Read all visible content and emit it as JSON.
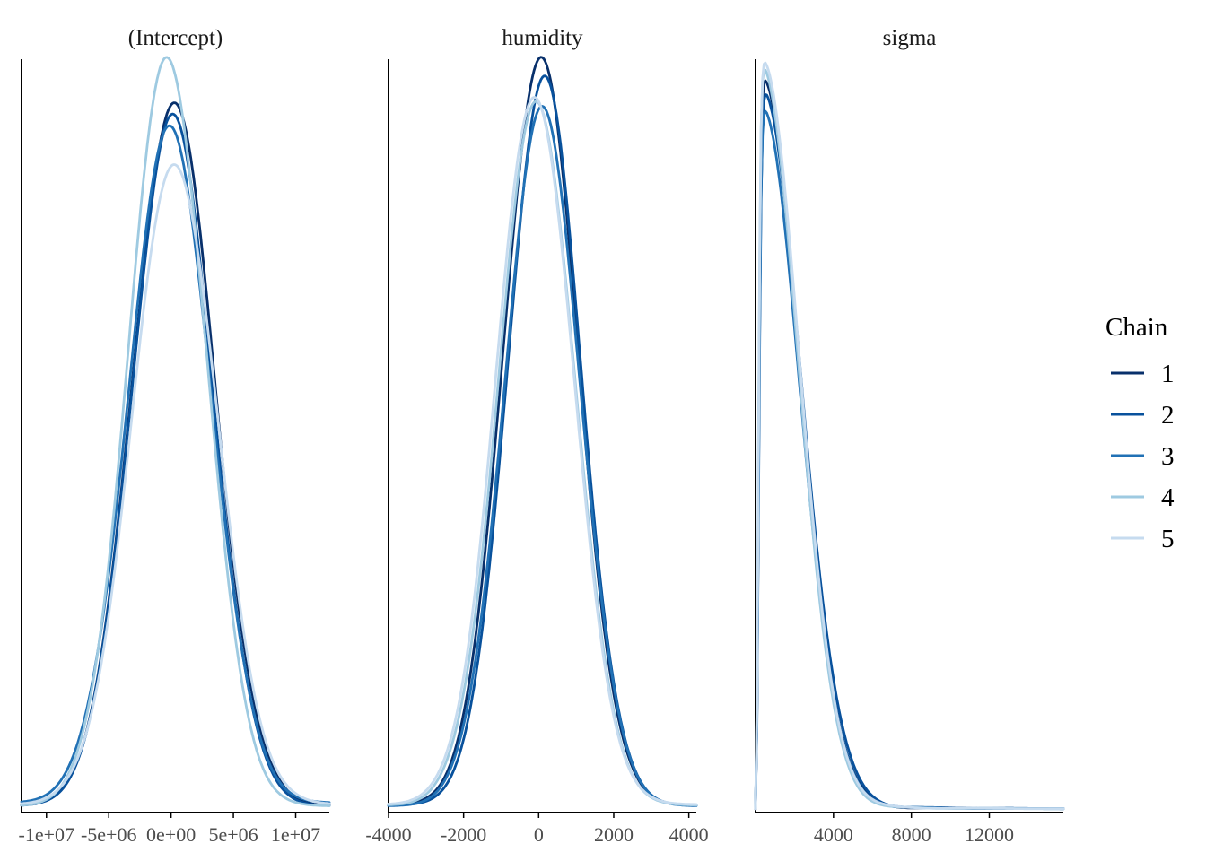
{
  "chart_data": {
    "type": "line",
    "kind": "density",
    "panels": [
      {
        "title": "(Intercept)",
        "xlim": [
          -12000000,
          12700000
        ],
        "ticks": [
          {
            "value": -10000000,
            "label": "-1e+07"
          },
          {
            "value": -5000000,
            "label": "-5e+06"
          },
          {
            "value": 0,
            "label": "0e+00"
          },
          {
            "value": 5000000,
            "label": "5e+06"
          },
          {
            "value": 10000000,
            "label": "1e+07"
          }
        ],
        "shape": {
          "kind": "normal",
          "mean": 0,
          "sd": 3300000,
          "peak": 0.95
        },
        "chains": [
          {
            "mean": 200000,
            "sd": 3300000,
            "peak": 0.94,
            "tail": 0.004
          },
          {
            "mean": 100000,
            "sd": 3250000,
            "peak": 0.92,
            "tail": 0.004
          },
          {
            "mean": -100000,
            "sd": 3350000,
            "peak": 0.9,
            "tail": 0.008
          },
          {
            "mean": -300000,
            "sd": 3150000,
            "peak": 1.0,
            "tail": 0.004
          },
          {
            "mean": 300000,
            "sd": 3400000,
            "peak": 0.86,
            "tail": 0.006
          }
        ]
      },
      {
        "title": "humidity",
        "xlim": [
          -4000,
          4200
        ],
        "ticks": [
          {
            "value": -4000,
            "label": "-4000"
          },
          {
            "value": -2000,
            "label": "-2000"
          },
          {
            "value": 0,
            "label": "0"
          },
          {
            "value": 2000,
            "label": "2000"
          },
          {
            "value": 4000,
            "label": "4000"
          }
        ],
        "shape": {
          "kind": "normal"
        },
        "chains": [
          {
            "mean": 50,
            "sd": 1000,
            "peak": 1.0,
            "tail": 0.005
          },
          {
            "mean": 150,
            "sd": 980,
            "peak": 0.97,
            "tail": 0.005
          },
          {
            "mean": 100,
            "sd": 1010,
            "peak": 0.93,
            "tail": 0.004
          },
          {
            "mean": -50,
            "sd": 1020,
            "peak": 0.94,
            "tail": 0.005
          },
          {
            "mean": -100,
            "sd": 1030,
            "peak": 0.95,
            "tail": 0.006
          }
        ]
      },
      {
        "title": "sigma",
        "xlim": [
          0,
          15800
        ],
        "ticks": [
          {
            "value": 4000,
            "label": "4000"
          },
          {
            "value": 8000,
            "label": "8000"
          },
          {
            "value": 12000,
            "label": "12000"
          }
        ],
        "shape": {
          "kind": "half-normal"
        },
        "chains": [
          {
            "mode": 350,
            "sd": 1900,
            "peak": 0.97,
            "tail": 0.006
          },
          {
            "mode": 380,
            "sd": 1950,
            "peak": 0.95,
            "tail": 0.007
          },
          {
            "mode": 360,
            "sd": 1900,
            "peak": 0.93,
            "tail": 0.006
          },
          {
            "mode": 330,
            "sd": 1850,
            "peak": 0.99,
            "tail": 0.005
          },
          {
            "mode": 340,
            "sd": 1880,
            "peak": 1.0,
            "tail": 0.006
          }
        ]
      }
    ],
    "legend": {
      "title": "Chain",
      "position": "right",
      "entries": [
        {
          "label": "1",
          "color": "#08306b"
        },
        {
          "label": "2",
          "color": "#08519c"
        },
        {
          "label": "3",
          "color": "#2171b5"
        },
        {
          "label": "4",
          "color": "#9ecae1"
        },
        {
          "label": "5",
          "color": "#c6dbef"
        }
      ]
    },
    "grid": false
  }
}
